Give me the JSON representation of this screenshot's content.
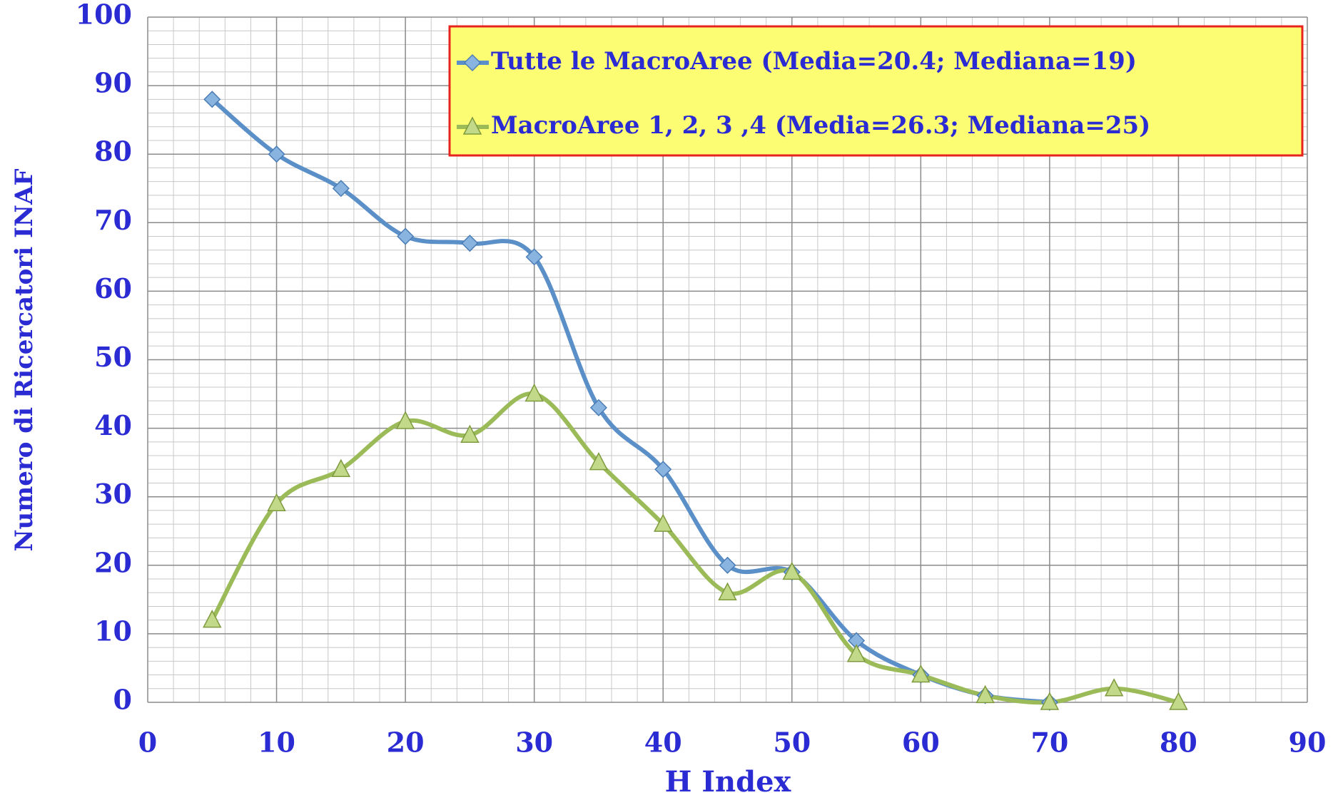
{
  "chart_data": {
    "type": "line",
    "x_label": "H Index",
    "y_label": "Numero di Ricercatori INAF",
    "series": [
      {
        "name": "Tutte le MacroAree (Media=20.4; Mediana=19)",
        "color": "#5b8fc7",
        "marker": "diamond",
        "x": [
          5,
          10,
          15,
          20,
          25,
          30,
          35,
          40,
          45,
          50,
          55,
          60,
          65,
          70
        ],
        "values": [
          88,
          80,
          75,
          68,
          67,
          65,
          43,
          34,
          20,
          19,
          9,
          4,
          1,
          0
        ]
      },
      {
        "name": "MacroAree 1, 2, 3 ,4 (Media=26.3; Mediana=25)",
        "color": "#9bbb59",
        "marker": "triangle",
        "x": [
          5,
          10,
          15,
          20,
          25,
          30,
          35,
          40,
          45,
          50,
          55,
          60,
          65,
          70,
          75,
          80
        ],
        "values": [
          12,
          29,
          34,
          41,
          39,
          45,
          35,
          26,
          16,
          19,
          7,
          4,
          1,
          0,
          2,
          0
        ]
      }
    ],
    "xlim": [
      0,
      90
    ],
    "xticks": [
      0,
      10,
      20,
      30,
      40,
      50,
      60,
      70,
      80,
      90
    ],
    "ylim": [
      0,
      100
    ],
    "yticks": [
      0,
      10,
      20,
      30,
      40,
      50,
      60,
      70,
      80,
      90,
      100
    ],
    "grid": true,
    "legend": "top-right"
  }
}
